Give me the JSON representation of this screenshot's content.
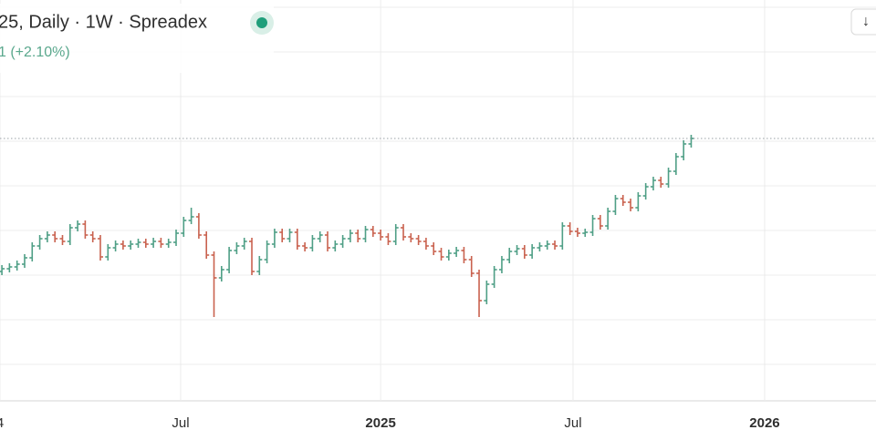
{
  "chart_data": {
    "type": "ohlc",
    "title": "25, Daily · 1W · Spreadex",
    "subtitle": "1 (+2.10%)",
    "button": "↓",
    "up_color": "#4f9f86",
    "down_color": "#c9624f",
    "x": [
      0,
      1,
      2,
      3,
      4,
      5,
      6,
      7,
      8,
      9,
      10,
      11,
      12,
      13,
      14,
      15,
      16,
      17,
      18,
      19,
      20,
      21,
      22,
      23,
      24,
      25,
      26,
      27,
      28,
      29,
      30,
      31,
      32,
      33,
      34,
      35,
      36,
      37,
      38,
      39,
      40,
      41,
      42,
      43,
      44,
      45,
      46,
      47,
      48,
      49,
      50,
      51,
      52,
      53,
      54,
      55,
      56,
      57,
      58,
      59,
      60,
      61,
      62,
      63,
      64,
      65,
      66,
      67,
      68,
      69,
      70,
      71,
      72,
      73,
      74,
      75,
      76,
      77,
      78,
      79,
      80,
      81,
      82,
      83,
      84,
      85,
      86,
      87,
      88,
      89,
      90,
      91
    ],
    "open": [
      185,
      188,
      190,
      193,
      200,
      213,
      221,
      225,
      221,
      218,
      233,
      237,
      225,
      221,
      201,
      211,
      215,
      213,
      215,
      217,
      215,
      218,
      215,
      217,
      227,
      241,
      245,
      225,
      203,
      178,
      187,
      208,
      213,
      218,
      185,
      198,
      215,
      228,
      221,
      228,
      213,
      211,
      221,
      225,
      211,
      215,
      221,
      227,
      221,
      231,
      227,
      223,
      218,
      233,
      223,
      221,
      218,
      213,
      207,
      201,
      205,
      208,
      198,
      183,
      153,
      171,
      187,
      198,
      207,
      210,
      203,
      211,
      213,
      215,
      213,
      235,
      229,
      227,
      228,
      243,
      235,
      251,
      265,
      261,
      255,
      268,
      278,
      285,
      281,
      295,
      311,
      325
    ],
    "high": [
      192,
      194,
      197,
      204,
      217,
      225,
      229,
      229,
      225,
      237,
      241,
      241,
      229,
      225,
      215,
      219,
      219,
      219,
      221,
      221,
      222,
      222,
      221,
      231,
      245,
      255,
      249,
      229,
      207,
      191,
      212,
      217,
      222,
      222,
      202,
      219,
      232,
      232,
      232,
      232,
      217,
      225,
      229,
      229,
      219,
      225,
      231,
      231,
      235,
      235,
      231,
      227,
      237,
      237,
      227,
      225,
      222,
      217,
      211,
      209,
      212,
      212,
      202,
      187,
      175,
      191,
      202,
      211,
      214,
      214,
      215,
      217,
      219,
      219,
      239,
      239,
      233,
      232,
      247,
      247,
      255,
      269,
      269,
      265,
      272,
      282,
      289,
      289,
      299,
      315,
      329,
      335
    ],
    "low": [
      181,
      184,
      186,
      189,
      196,
      209,
      217,
      217,
      214,
      214,
      229,
      221,
      217,
      197,
      197,
      207,
      209,
      209,
      211,
      211,
      211,
      211,
      211,
      213,
      223,
      237,
      221,
      199,
      135,
      174,
      183,
      204,
      209,
      181,
      181,
      194,
      211,
      217,
      217,
      209,
      207,
      207,
      217,
      207,
      207,
      211,
      217,
      217,
      217,
      223,
      219,
      214,
      214,
      219,
      217,
      214,
      209,
      203,
      197,
      197,
      201,
      194,
      179,
      135,
      149,
      167,
      183,
      194,
      203,
      199,
      199,
      207,
      209,
      209,
      209,
      225,
      223,
      223,
      224,
      231,
      231,
      247,
      257,
      251,
      251,
      264,
      274,
      277,
      277,
      291,
      307,
      321
    ],
    "close": [
      188,
      190,
      193,
      200,
      213,
      221,
      225,
      221,
      218,
      233,
      237,
      225,
      221,
      201,
      211,
      215,
      213,
      215,
      217,
      215,
      218,
      215,
      217,
      227,
      241,
      245,
      225,
      203,
      178,
      187,
      208,
      213,
      218,
      185,
      198,
      215,
      228,
      221,
      228,
      213,
      211,
      221,
      225,
      211,
      215,
      221,
      227,
      221,
      231,
      227,
      223,
      218,
      233,
      223,
      221,
      218,
      213,
      207,
      201,
      205,
      208,
      198,
      183,
      153,
      171,
      187,
      198,
      207,
      210,
      203,
      211,
      213,
      215,
      213,
      235,
      229,
      227,
      228,
      243,
      235,
      251,
      265,
      261,
      255,
      268,
      278,
      285,
      281,
      295,
      311,
      325,
      331
    ],
    "xlim": [
      -0.25,
      115.4
    ],
    "xticks": [
      {
        "value": -0.25,
        "label": "4"
      },
      {
        "value": 23.6,
        "label": "Jul"
      },
      {
        "value": 50,
        "label": "2025"
      },
      {
        "value": 75.4,
        "label": "Jul"
      },
      {
        "value": 100.7,
        "label": "2026"
      }
    ],
    "ylim": [
      0,
      483
    ]
  }
}
